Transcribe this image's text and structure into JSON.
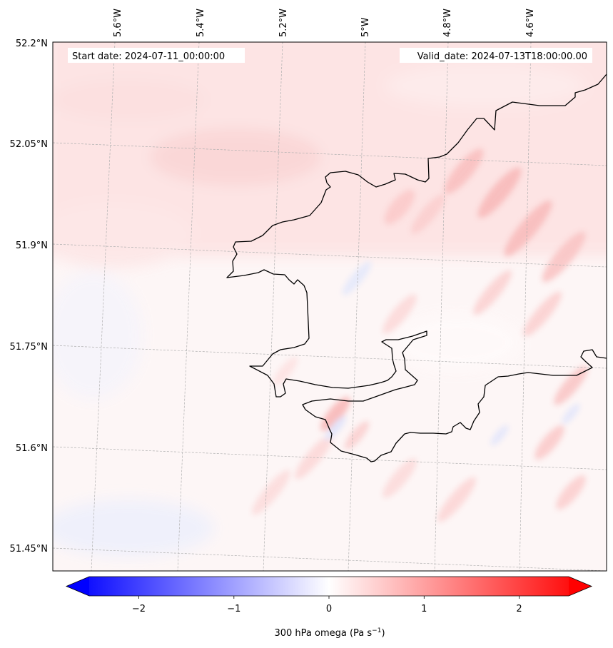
{
  "header": {
    "start_label": "Start date: 2024-07-11_00:00:00",
    "valid_label": "Valid_date: 2024-07-13T18:00:00.00"
  },
  "map": {
    "lon_labels": [
      "5.6°W",
      "5.4°W",
      "5.2°W",
      "5°W",
      "4.8°W",
      "4.6°W"
    ],
    "lat_labels": [
      "52.2°N",
      "52.05°N",
      "51.9°N",
      "51.75°N",
      "51.6°N",
      "51.45°N"
    ],
    "field_description": "300 hPa vertical velocity (omega) shaded, coastline of Pembrokeshire, Wales",
    "coastline_color": "#000000",
    "gridline_color": "#b0b0b0"
  },
  "colorbar": {
    "ticks": [
      "−2",
      "−1",
      "0",
      "1",
      "2"
    ],
    "label_main": "300 hPa omega (Pa s",
    "label_sup": "−1",
    "label_end": ")",
    "cmap": "bwr",
    "vmin": -2.5,
    "vmax": 2.5,
    "extend": "both",
    "color_low": "#0000ff",
    "color_mid": "#ffffff",
    "color_high": "#ff0000"
  }
}
